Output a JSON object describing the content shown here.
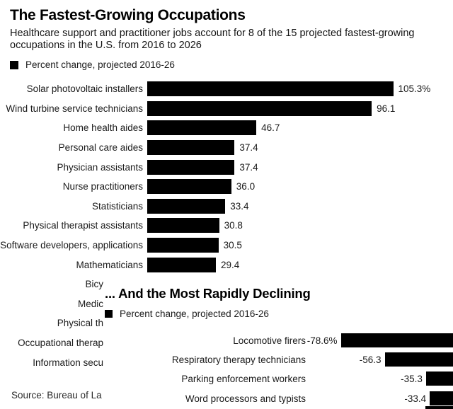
{
  "colors": {
    "background": "#ffffff",
    "bar": "#000000",
    "text": "#1a1a1a"
  },
  "chart_data": [
    {
      "type": "bar",
      "orientation": "horizontal",
      "title": "The Fastest-Growing Occupations",
      "subtitle": "Healthcare support and practitioner jobs account for 8 of the 15 projected fastest-growing occupations in the U.S. from 2016 to 2026",
      "legend": [
        "Percent change, projected 2016-26"
      ],
      "categories": [
        "Solar photovoltaic installers",
        "Wind turbine service technicians",
        "Home health aides",
        "Personal care aides",
        "Physician assistants",
        "Nurse practitioners",
        "Statisticians",
        "Physical therapist assistants",
        "Software developers, applications",
        "Mathematicians"
      ],
      "values": [
        105.3,
        96.1,
        46.7,
        37.4,
        37.4,
        36.0,
        33.4,
        30.8,
        30.5,
        29.4
      ],
      "value_labels": [
        "105.3%",
        "96.1",
        "46.7",
        "37.4",
        "37.4",
        "36.0",
        "33.4",
        "30.8",
        "30.5",
        "29.4"
      ],
      "truncated_categories": [
        "Bicy",
        "Medic",
        "Physical th",
        "Occupational therap",
        "Information secu"
      ],
      "xlim": [
        0,
        130
      ],
      "grid": false,
      "unit": "percent",
      "source": "Source: Bureau of La"
    },
    {
      "type": "bar",
      "orientation": "horizontal",
      "title": "... And the Most Rapidly Declining",
      "legend": [
        "Percent change, projected 2016-26"
      ],
      "categories": [
        "Locomotive firers",
        "Respiratory therapy technicians",
        "Parking enforcement workers",
        "Word processors and typists"
      ],
      "values": [
        -78.6,
        -56.3,
        -35.3,
        -33.4
      ],
      "value_labels": [
        "-78.6%",
        "-56.3",
        "-35.3",
        "-33.4"
      ],
      "grid": false,
      "unit": "percent",
      "partial_fifth_bar_visible": true
    }
  ]
}
